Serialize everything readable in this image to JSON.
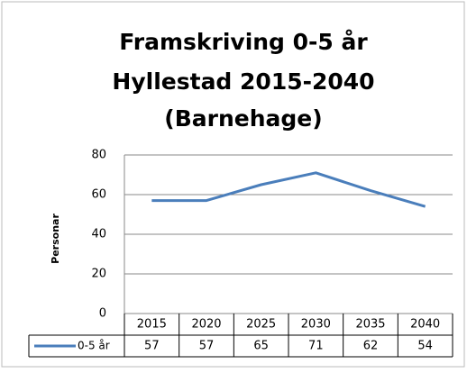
{
  "chart_data": {
    "type": "line",
    "title": [
      "Framskriving 0-5 år",
      "Hyllestad 2015-2040",
      "(Barnehage)"
    ],
    "y_label": "Personar",
    "categories": [
      "2015",
      "2020",
      "2025",
      "2030",
      "2035",
      "2040"
    ],
    "series": [
      {
        "name": "0-5 år",
        "color": "#4a7ebb",
        "values": [
          57,
          57,
          65,
          71,
          62,
          54
        ]
      }
    ],
    "ylim": [
      0,
      80
    ],
    "yticks": [
      0,
      20,
      40,
      60,
      80
    ],
    "grid": true
  }
}
